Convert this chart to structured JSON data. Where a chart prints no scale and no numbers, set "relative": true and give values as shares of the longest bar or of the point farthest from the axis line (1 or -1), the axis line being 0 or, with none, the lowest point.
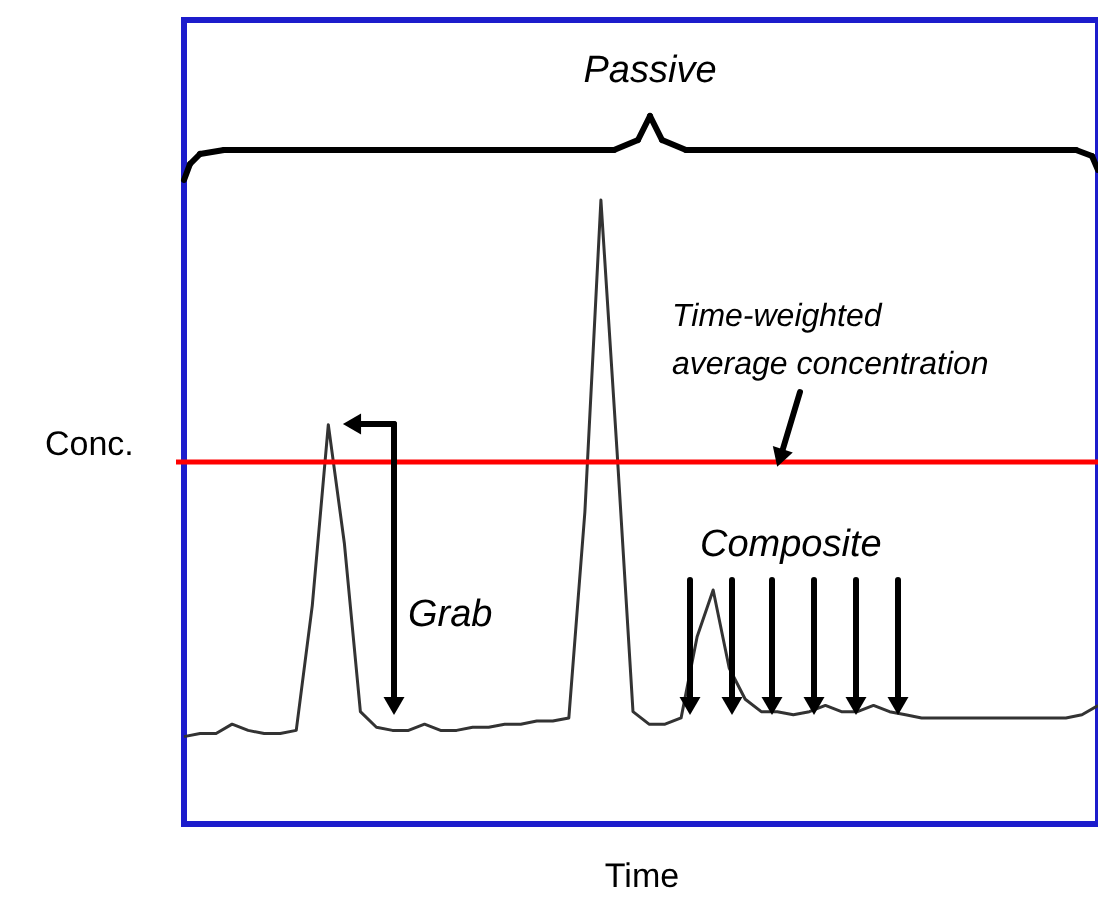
{
  "chart_data": {
    "type": "line",
    "relative": true,
    "xlabel": "Time",
    "ylabel": "Conc.",
    "categories": [
      null,
      null,
      null,
      null,
      null,
      null,
      null,
      null,
      null,
      null,
      null,
      null,
      null,
      null,
      null,
      null,
      null,
      null,
      null,
      null,
      null,
      null,
      null,
      null,
      null,
      null,
      null,
      null,
      null,
      null,
      null,
      null,
      null,
      null,
      null,
      null,
      null,
      null,
      null,
      null,
      null,
      null,
      null,
      null,
      null,
      null,
      null,
      null,
      null,
      null,
      null,
      null,
      null,
      null,
      null,
      null,
      null,
      null
    ],
    "series": [
      {
        "color": "#333333",
        "values": [
          0.14,
          0.145,
          0.145,
          0.16,
          0.15,
          0.145,
          0.145,
          0.15,
          0.35,
          0.64,
          0.45,
          0.18,
          0.155,
          0.15,
          0.15,
          0.16,
          0.15,
          0.15,
          0.155,
          0.155,
          0.16,
          0.16,
          0.165,
          0.165,
          0.17,
          0.5,
          1.0,
          0.6,
          0.18,
          0.16,
          0.16,
          0.17,
          0.3,
          0.375,
          0.25,
          0.2,
          0.18,
          0.18,
          0.175,
          0.18,
          0.19,
          0.18,
          0.18,
          0.19,
          0.18,
          0.175,
          0.17,
          0.17,
          0.17,
          0.17,
          0.17,
          0.17,
          0.17,
          0.17,
          0.17,
          0.17,
          0.175,
          0.19
        ]
      }
    ],
    "ref_lines": [
      {
        "axis": "y",
        "value": 0.58,
        "color": "#ff0000"
      }
    ],
    "annotations": [
      "Passive",
      "Time-weighted\naverage concentration",
      "Grab",
      "Composite"
    ]
  }
}
